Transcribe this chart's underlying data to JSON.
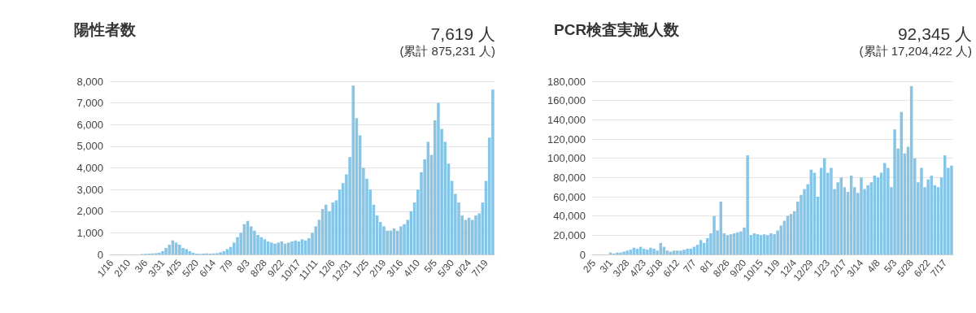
{
  "chart_data": [
    {
      "type": "bar",
      "title": "陽性者数",
      "subtitle": "7,619 人",
      "annotations": [
        "(累計 875,231 人)"
      ],
      "categories": [
        "1/16",
        null,
        null,
        null,
        null,
        "2/10",
        null,
        null,
        null,
        null,
        "3/6",
        null,
        null,
        null,
        null,
        "3/31",
        null,
        null,
        null,
        null,
        "4/25",
        null,
        null,
        null,
        null,
        "5/20",
        null,
        null,
        null,
        null,
        "6/14",
        null,
        null,
        null,
        null,
        "7/9",
        null,
        null,
        null,
        null,
        "8/3",
        null,
        null,
        null,
        null,
        "8/28",
        null,
        null,
        null,
        null,
        "9/22",
        null,
        null,
        null,
        null,
        "10/17",
        null,
        null,
        null,
        null,
        "11/11",
        null,
        null,
        null,
        null,
        "12/6",
        null,
        null,
        null,
        null,
        "12/31",
        null,
        null,
        null,
        null,
        "1/25",
        null,
        null,
        null,
        null,
        "2/19",
        null,
        null,
        null,
        null,
        "3/16",
        null,
        null,
        null,
        null,
        "4/10",
        null,
        null,
        null,
        null,
        "5/5",
        null,
        null,
        null,
        null,
        "5/30",
        null,
        null,
        null,
        null,
        "6/24",
        null,
        null,
        null,
        null,
        "7/19",
        null,
        null
      ],
      "values": [
        0,
        0,
        0,
        0,
        0,
        0,
        0,
        0,
        0,
        20,
        30,
        40,
        50,
        60,
        80,
        150,
        300,
        450,
        650,
        550,
        450,
        300,
        250,
        150,
        80,
        40,
        30,
        40,
        50,
        40,
        50,
        60,
        100,
        150,
        250,
        350,
        550,
        800,
        1000,
        1400,
        1550,
        1300,
        1100,
        900,
        800,
        700,
        600,
        550,
        500,
        550,
        600,
        500,
        550,
        600,
        650,
        600,
        700,
        650,
        750,
        1000,
        1300,
        1600,
        2100,
        2300,
        2000,
        2400,
        2500,
        3000,
        3300,
        3700,
        4500,
        7800,
        6300,
        5500,
        4000,
        3500,
        3000,
        2300,
        1800,
        1500,
        1300,
        1100,
        1100,
        1200,
        1100,
        1300,
        1400,
        1600,
        2000,
        2400,
        3000,
        3800,
        4400,
        5200,
        4600,
        6200,
        7000,
        5800,
        5200,
        4200,
        3400,
        2800,
        2400,
        1800,
        1600,
        1700,
        1600,
        1800,
        1900,
        2400,
        3400,
        5400,
        7619
      ],
      "color": "#86c5e6",
      "ylim": [
        0,
        8000
      ],
      "yticks": [
        0,
        {
          "value": 1000,
          "label": "1,000"
        },
        {
          "value": 2000,
          "label": "2,000"
        },
        {
          "value": 3000,
          "label": "3,000"
        },
        {
          "value": 4000,
          "label": "4,000"
        },
        {
          "value": 5000,
          "label": "5,000"
        },
        {
          "value": 6000,
          "label": "6,000"
        },
        {
          "value": 7000,
          "label": "7,000"
        },
        {
          "value": 8000,
          "label": "8,000"
        }
      ],
      "grid": "y"
    },
    {
      "type": "bar",
      "title": "PCR検査実施人数",
      "subtitle": "92,345 人",
      "annotations": [
        "(累計 17,204,422 人)"
      ],
      "categories": [
        "2/5",
        null,
        null,
        null,
        null,
        "3/1",
        null,
        null,
        null,
        null,
        "3/28",
        null,
        null,
        null,
        null,
        "4/23",
        null,
        null,
        null,
        null,
        "5/18",
        null,
        null,
        null,
        null,
        "6/12",
        null,
        null,
        null,
        null,
        "7/7",
        null,
        null,
        null,
        null,
        "8/1",
        null,
        null,
        null,
        null,
        "8/26",
        null,
        null,
        null,
        null,
        "9/20",
        null,
        null,
        null,
        null,
        "10/15",
        null,
        null,
        null,
        null,
        "11/9",
        null,
        null,
        null,
        null,
        "12/4",
        null,
        null,
        null,
        null,
        "12/29",
        null,
        null,
        null,
        null,
        "1/23",
        null,
        null,
        null,
        null,
        "2/17",
        null,
        null,
        null,
        null,
        "3/14",
        null,
        null,
        null,
        null,
        "4/8",
        null,
        null,
        null,
        null,
        "5/3",
        null,
        null,
        null,
        null,
        "5/28",
        null,
        null,
        null,
        null,
        "6/22",
        null,
        null,
        null,
        null,
        "7/17",
        null,
        null
      ],
      "values": [
        0,
        0,
        0,
        0,
        0,
        2000,
        1000,
        2000,
        2000,
        3000,
        4000,
        5000,
        7000,
        6000,
        8000,
        6000,
        5000,
        7000,
        6000,
        4000,
        12000,
        8000,
        4000,
        3000,
        4000,
        4000,
        4000,
        5000,
        6000,
        6000,
        8000,
        10000,
        15000,
        12000,
        17000,
        22000,
        40000,
        25000,
        55000,
        22000,
        20000,
        21000,
        22000,
        23000,
        24000,
        28000,
        103000,
        20000,
        22000,
        21000,
        20000,
        21000,
        20000,
        22000,
        21000,
        25000,
        30000,
        35000,
        40000,
        42000,
        45000,
        55000,
        62000,
        68000,
        73000,
        88000,
        85000,
        60000,
        90000,
        100000,
        85000,
        90000,
        68000,
        75000,
        80000,
        70000,
        65000,
        82000,
        70000,
        64000,
        80000,
        68000,
        72000,
        75000,
        82000,
        80000,
        85000,
        95000,
        90000,
        70000,
        130000,
        110000,
        148000,
        105000,
        112000,
        175000,
        100000,
        75000,
        90000,
        70000,
        78000,
        82000,
        72000,
        70000,
        80000,
        103000,
        90000,
        92345
      ],
      "color": "#86c5e6",
      "ylim": [
        0,
        180000
      ],
      "yticks": [
        0,
        {
          "value": 20000,
          "label": "20,000"
        },
        {
          "value": 40000,
          "label": "40,000"
        },
        {
          "value": 60000,
          "label": "60,000"
        },
        {
          "value": 80000,
          "label": "80,000"
        },
        {
          "value": 100000,
          "label": "100,000"
        },
        {
          "value": 120000,
          "label": "120,000"
        },
        {
          "value": 140000,
          "label": "140,000"
        },
        {
          "value": 160000,
          "label": "160,000"
        },
        {
          "value": 180000,
          "label": "180,000"
        }
      ],
      "grid": "y"
    }
  ]
}
